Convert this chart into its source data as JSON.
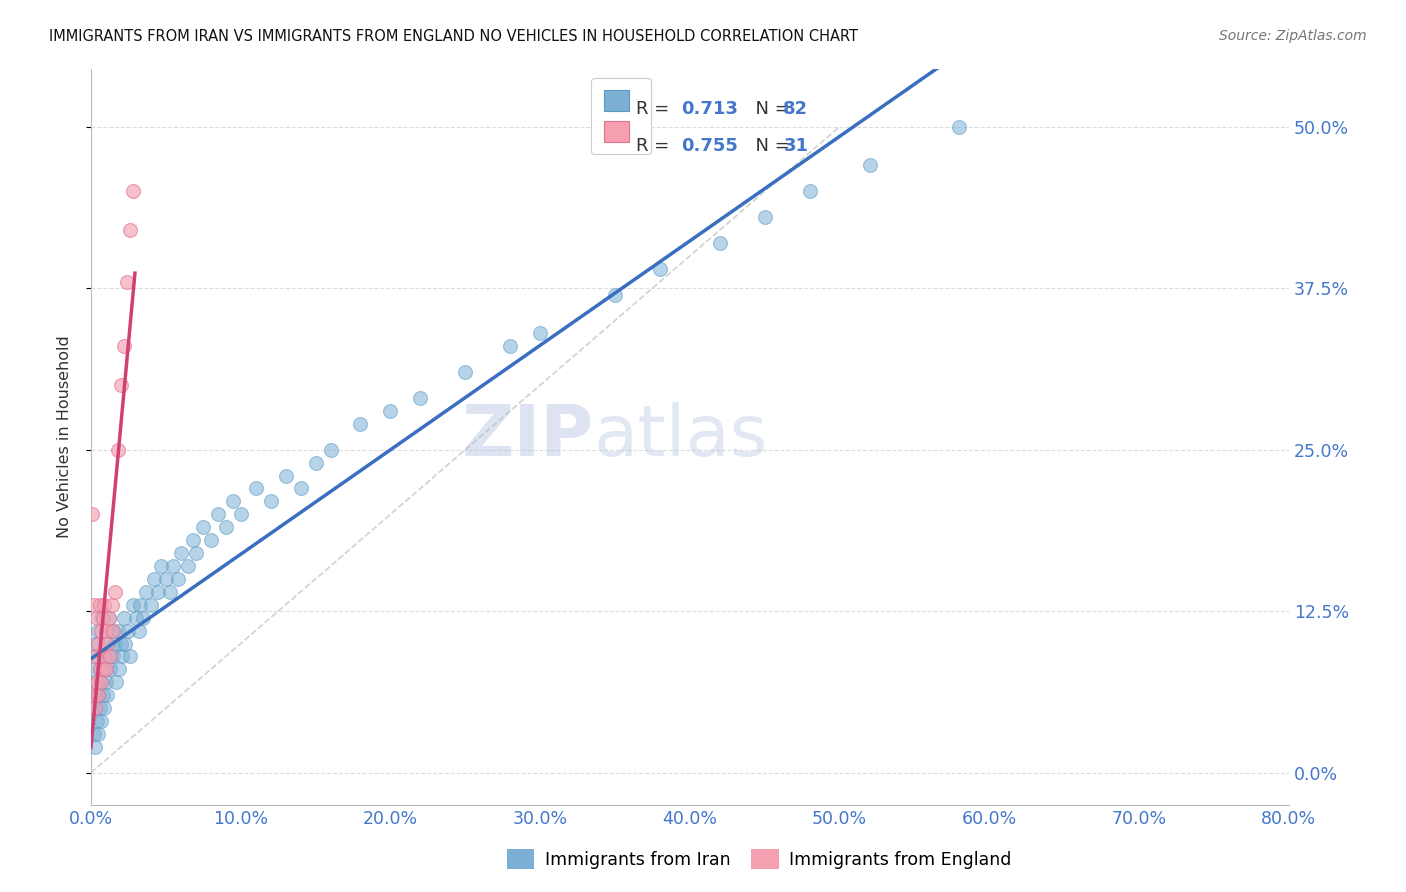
{
  "title": "IMMIGRANTS FROM IRAN VS IMMIGRANTS FROM ENGLAND NO VEHICLES IN HOUSEHOLD CORRELATION CHART",
  "source": "Source: ZipAtlas.com",
  "ylabel": "No Vehicles in Household",
  "xmin": 0.0,
  "xmax": 0.8,
  "ymin": -0.025,
  "ymax": 0.545,
  "xtick_step": 0.1,
  "ytick_step": 0.125,
  "iran_R": 0.713,
  "iran_N": 82,
  "england_R": 0.755,
  "england_N": 31,
  "iran_color_fill": "#7BAFD4",
  "iran_color_edge": "#5A9BC4",
  "england_color_fill": "#F4A0B0",
  "england_color_edge": "#E07090",
  "iran_line_color": "#3A6EC0",
  "england_line_color": "#D04070",
  "diagonal_color": "#CCCCCC",
  "iran_scatter_x": [
    0.001,
    0.002,
    0.002,
    0.003,
    0.003,
    0.003,
    0.004,
    0.004,
    0.004,
    0.005,
    0.005,
    0.005,
    0.006,
    0.006,
    0.007,
    0.007,
    0.007,
    0.008,
    0.008,
    0.009,
    0.009,
    0.01,
    0.01,
    0.011,
    0.012,
    0.012,
    0.013,
    0.014,
    0.015,
    0.016,
    0.017,
    0.018,
    0.019,
    0.02,
    0.021,
    0.022,
    0.023,
    0.025,
    0.026,
    0.028,
    0.03,
    0.032,
    0.033,
    0.035,
    0.037,
    0.04,
    0.042,
    0.045,
    0.047,
    0.05,
    0.053,
    0.055,
    0.058,
    0.06,
    0.065,
    0.068,
    0.07,
    0.075,
    0.08,
    0.085,
    0.09,
    0.095,
    0.1,
    0.11,
    0.12,
    0.13,
    0.14,
    0.15,
    0.16,
    0.18,
    0.2,
    0.22,
    0.25,
    0.28,
    0.3,
    0.35,
    0.38,
    0.42,
    0.45,
    0.48,
    0.52,
    0.58
  ],
  "iran_scatter_y": [
    0.05,
    0.03,
    0.08,
    0.02,
    0.06,
    0.1,
    0.04,
    0.07,
    0.09,
    0.03,
    0.06,
    0.11,
    0.05,
    0.08,
    0.04,
    0.07,
    0.12,
    0.06,
    0.09,
    0.05,
    0.08,
    0.07,
    0.1,
    0.06,
    0.09,
    0.12,
    0.08,
    0.11,
    0.09,
    0.1,
    0.07,
    0.11,
    0.08,
    0.1,
    0.09,
    0.12,
    0.1,
    0.11,
    0.09,
    0.13,
    0.12,
    0.11,
    0.13,
    0.12,
    0.14,
    0.13,
    0.15,
    0.14,
    0.16,
    0.15,
    0.14,
    0.16,
    0.15,
    0.17,
    0.16,
    0.18,
    0.17,
    0.19,
    0.18,
    0.2,
    0.19,
    0.21,
    0.2,
    0.22,
    0.21,
    0.23,
    0.22,
    0.24,
    0.25,
    0.27,
    0.28,
    0.29,
    0.31,
    0.33,
    0.34,
    0.37,
    0.39,
    0.41,
    0.43,
    0.45,
    0.47,
    0.5
  ],
  "england_scatter_x": [
    0.001,
    0.002,
    0.002,
    0.003,
    0.003,
    0.004,
    0.004,
    0.005,
    0.005,
    0.006,
    0.006,
    0.007,
    0.007,
    0.008,
    0.008,
    0.009,
    0.009,
    0.01,
    0.01,
    0.011,
    0.012,
    0.013,
    0.014,
    0.015,
    0.016,
    0.018,
    0.02,
    0.022,
    0.024,
    0.026,
    0.028
  ],
  "england_scatter_y": [
    0.2,
    0.06,
    0.13,
    0.05,
    0.09,
    0.07,
    0.12,
    0.06,
    0.1,
    0.08,
    0.13,
    0.07,
    0.11,
    0.08,
    0.12,
    0.09,
    0.13,
    0.08,
    0.11,
    0.1,
    0.12,
    0.09,
    0.13,
    0.11,
    0.14,
    0.25,
    0.3,
    0.33,
    0.38,
    0.42,
    0.45
  ],
  "watermark_part1": "ZIP",
  "watermark_part2": "atlas",
  "legend_iran_label": "Immigrants from Iran",
  "legend_england_label": "Immigrants from England"
}
